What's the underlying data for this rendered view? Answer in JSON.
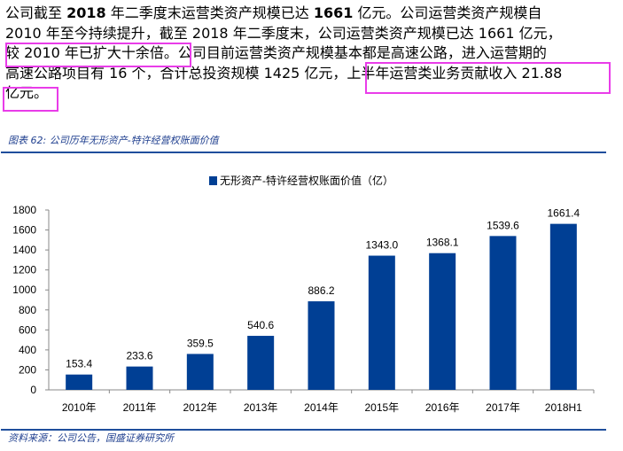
{
  "paragraph": {
    "lines": [
      [
        "公司截至 ",
        "2018",
        " 年二季度末运营类资产规模已达 ",
        "1661",
        " 亿元。公司运营类资产规模自"
      ],
      [
        "2010 年至今持续提升，截至 2018 年二季度末，公司运营类资产规模已达 1661 亿元，"
      ],
      [
        "较 2010 年已扩大十余倍。公司目前运营类资产规模基本都是高速公路，进入运营期的"
      ],
      [
        "高速公路项目有 16 个，合计总投资规模 1425 亿元，上半年运营类业务贡献收入 21.88"
      ],
      [
        "亿元。"
      ]
    ],
    "highlight_color": "#e93ce9"
  },
  "caption": "图表 62:  公司历年无形资产-特许经营权账面价值",
  "source": "资料来源：公司公告，国盛证券研究所",
  "chart_data": {
    "type": "bar",
    "legend": "无形资产-特许经营权账面价值（亿）",
    "legend_placement": "top",
    "categories": [
      "2010年",
      "2011年",
      "2012年",
      "2013年",
      "2014年",
      "2015年",
      "2016年",
      "2017年",
      "2018H1"
    ],
    "values": [
      153.4,
      233.6,
      359.5,
      540.6,
      886.2,
      1343.0,
      1368.1,
      1539.6,
      1661.4
    ],
    "labels": [
      "153.4",
      "233.6",
      "359.5",
      "540.6",
      "886.2",
      "1343.0",
      "1368.1",
      "1539.6",
      "1661.4"
    ],
    "ylim": [
      0,
      1800
    ],
    "yticks": [
      "0",
      "200",
      "400",
      "600",
      "800",
      "1000",
      "1200",
      "1400",
      "1600",
      "1800"
    ],
    "bar_color": "#003f94",
    "grid": false
  }
}
